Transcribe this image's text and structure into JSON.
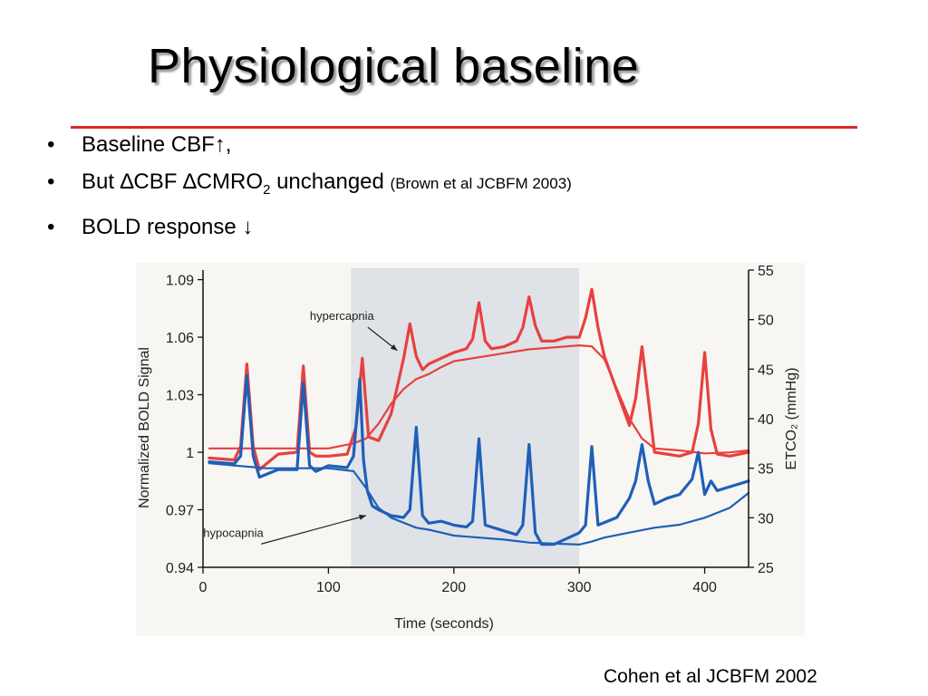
{
  "slide": {
    "title": "Physiological baseline",
    "bullets": [
      {
        "text": "Baseline CBF↑,"
      },
      {
        "pre": "But ∆CBF ∆CMRO",
        "sub": "2",
        "post": " unchanged ",
        "note": "(Brown et al JCBFM 2003)"
      },
      {
        "text": "BOLD response ↓"
      }
    ],
    "bullet_symbol": "•",
    "citation": "Cohen et al JCBFM 2002"
  },
  "colors": {
    "title_rule": "#e0262b",
    "hypercapnia": "#e8403f",
    "hypocapnia": "#1f5fb8",
    "shaded": "#dfe3e8"
  },
  "chart_data": {
    "type": "line",
    "xlabel": "Time (seconds)",
    "ylabel": "Normalized BOLD Signal",
    "ylabel_right": "ETCO₂ (mmHg)",
    "xlim": [
      0,
      435
    ],
    "ylim": [
      0.94,
      1.095
    ],
    "ylim_right": [
      25,
      55
    ],
    "xticks": [
      0,
      100,
      200,
      300,
      400
    ],
    "yticks": [
      0.94,
      0.97,
      1,
      1.03,
      1.06,
      1.09
    ],
    "ytick_labels": [
      "0.94",
      "0.97",
      "1",
      "1.03",
      "1.06",
      "1.09"
    ],
    "yticks_right": [
      25,
      30,
      35,
      40,
      45,
      50,
      55
    ],
    "shaded_region": [
      118,
      300
    ],
    "annotations": [
      {
        "text": "hypercapnia",
        "x": 130,
        "y": 1.068,
        "target_x": 155,
        "target_y": 1.053
      },
      {
        "text": "hypocapnia",
        "x": 45,
        "y": 0.955,
        "target_x": 130,
        "target_y": 0.967
      }
    ],
    "series": [
      {
        "name": "hypercapnia",
        "kind": "bold",
        "axis": "left",
        "x": [
          5,
          25,
          30,
          35,
          40,
          45,
          60,
          75,
          80,
          85,
          90,
          100,
          115,
          122,
          127,
          132,
          140,
          150,
          160,
          165,
          170,
          175,
          180,
          190,
          200,
          210,
          215,
          220,
          225,
          230,
          240,
          250,
          255,
          260,
          265,
          270,
          280,
          290,
          300,
          305,
          310,
          315,
          320,
          340,
          345,
          350,
          355,
          360,
          380,
          390,
          395,
          400,
          405,
          410,
          420,
          435
        ],
        "y": [
          0.997,
          0.996,
          1.003,
          1.046,
          1.003,
          0.991,
          0.999,
          1.0,
          1.045,
          1.0,
          0.998,
          0.998,
          0.999,
          1.013,
          1.049,
          1.008,
          1.006,
          1.02,
          1.049,
          1.067,
          1.05,
          1.043,
          1.046,
          1.049,
          1.052,
          1.054,
          1.059,
          1.078,
          1.058,
          1.054,
          1.055,
          1.058,
          1.065,
          1.081,
          1.066,
          1.058,
          1.058,
          1.06,
          1.06,
          1.07,
          1.085,
          1.065,
          1.05,
          1.014,
          1.028,
          1.055,
          1.028,
          1.0,
          0.998,
          1.0,
          1.015,
          1.052,
          1.012,
          0.999,
          0.998,
          1.0
        ]
      },
      {
        "name": "hypercapnia-etco2",
        "kind": "etco2",
        "axis": "right",
        "x": [
          5,
          50,
          100,
          120,
          130,
          140,
          150,
          160,
          170,
          180,
          190,
          200,
          220,
          240,
          260,
          280,
          300,
          310,
          320,
          330,
          340,
          350,
          360,
          380,
          400,
          420,
          435
        ],
        "y": [
          37,
          37,
          37,
          37.5,
          38,
          39.5,
          41.5,
          43,
          44,
          44.5,
          45.2,
          45.8,
          46.2,
          46.6,
          47,
          47.2,
          47.4,
          47.3,
          46,
          43,
          40,
          38,
          37,
          36.8,
          36.5,
          36.6,
          36.8
        ]
      },
      {
        "name": "hypocapnia",
        "kind": "bold",
        "axis": "left",
        "x": [
          5,
          25,
          30,
          35,
          40,
          45,
          60,
          75,
          80,
          85,
          90,
          100,
          115,
          120,
          125,
          128,
          131,
          135,
          140,
          150,
          160,
          165,
          170,
          175,
          180,
          190,
          200,
          210,
          215,
          220,
          225,
          240,
          250,
          255,
          260,
          265,
          270,
          280,
          290,
          300,
          305,
          310,
          315,
          330,
          340,
          345,
          350,
          355,
          360,
          370,
          380,
          390,
          395,
          400,
          405,
          410,
          420,
          435
        ],
        "y": [
          0.995,
          0.994,
          0.998,
          1.04,
          0.998,
          0.987,
          0.991,
          0.991,
          1.036,
          0.993,
          0.99,
          0.993,
          0.992,
          0.998,
          1.038,
          0.996,
          0.98,
          0.972,
          0.97,
          0.967,
          0.966,
          0.97,
          1.013,
          0.967,
          0.963,
          0.964,
          0.962,
          0.961,
          0.964,
          1.007,
          0.962,
          0.959,
          0.957,
          0.962,
          1.004,
          0.958,
          0.952,
          0.952,
          0.955,
          0.958,
          0.962,
          1.003,
          0.962,
          0.966,
          0.976,
          0.985,
          1.004,
          0.985,
          0.973,
          0.976,
          0.978,
          0.986,
          1.0,
          0.978,
          0.985,
          0.98,
          0.982,
          0.985
        ]
      },
      {
        "name": "hypocapnia-etco2",
        "kind": "etco2",
        "axis": "right",
        "x": [
          5,
          50,
          100,
          120,
          130,
          140,
          150,
          160,
          170,
          180,
          190,
          200,
          220,
          240,
          260,
          280,
          300,
          310,
          320,
          340,
          360,
          380,
          400,
          420,
          435
        ],
        "y": [
          35.5,
          35,
          35,
          34.7,
          33,
          31,
          30,
          29.5,
          29,
          28.8,
          28.5,
          28.2,
          28,
          27.8,
          27.5,
          27.4,
          27.3,
          27.6,
          28,
          28.5,
          29,
          29.3,
          30,
          31,
          32.5
        ]
      }
    ]
  }
}
